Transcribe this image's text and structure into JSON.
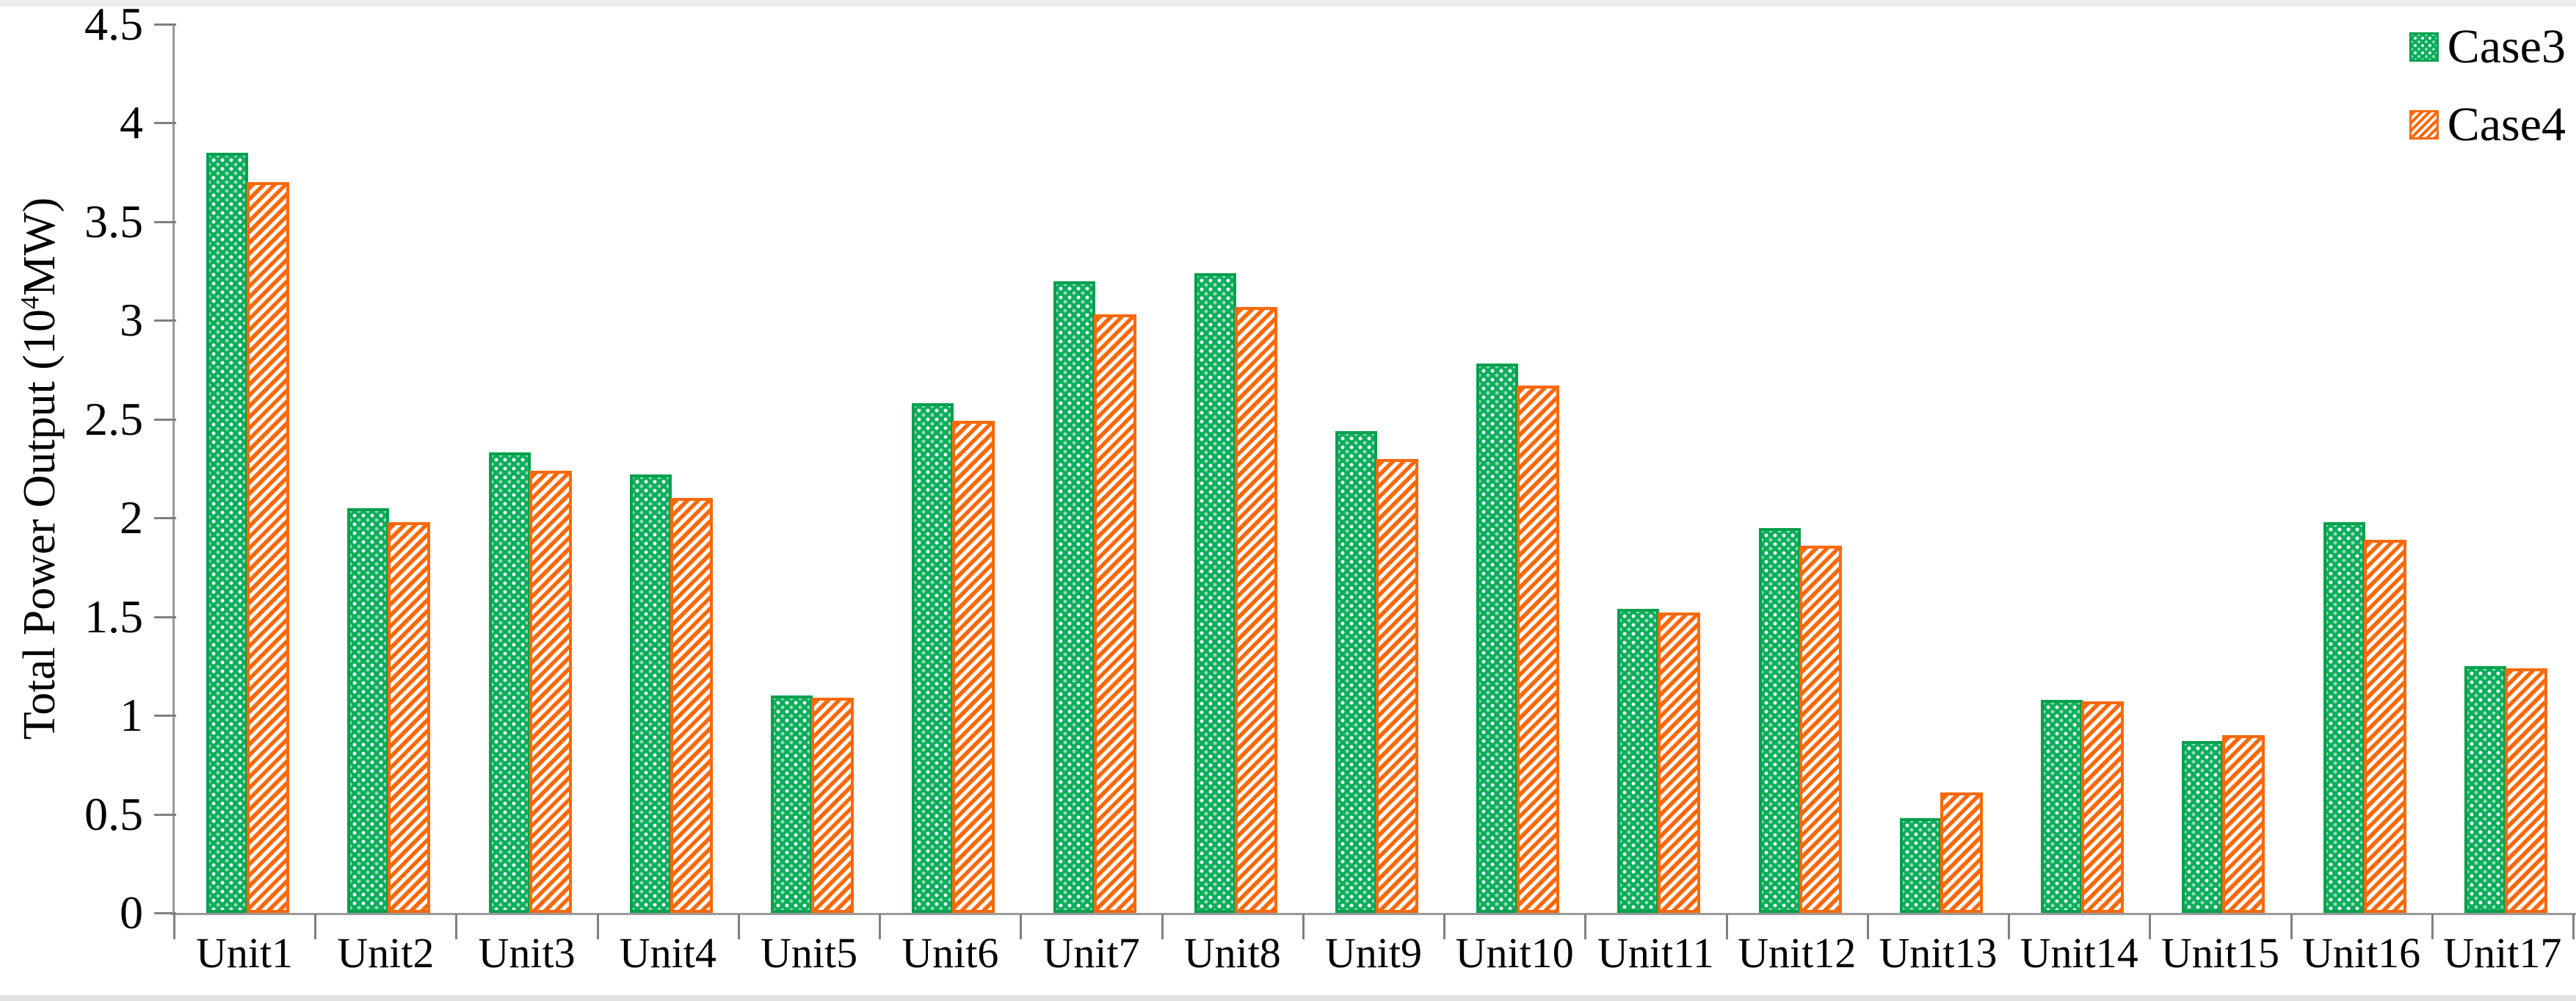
{
  "page": {
    "background": "#ffffff",
    "top_strip_color": "#ececec",
    "bottom_strip_color": "#e2e2e2"
  },
  "chart_data": {
    "type": "bar",
    "title": "",
    "categories": [
      "Unit1",
      "Unit2",
      "Unit3",
      "Unit4",
      "Unit5",
      "Unit6",
      "Unit7",
      "Unit8",
      "Unit9",
      "Unit10",
      "Unit11",
      "Unit12",
      "Unit13",
      "Unit14",
      "Unit15",
      "Unit16",
      "Unit17"
    ],
    "series": [
      {
        "name": "Case3",
        "pattern": "dotted",
        "color": "#0cad5b",
        "border_color": "#05a04e",
        "values": [
          3.85,
          2.05,
          2.33,
          2.22,
          1.1,
          2.58,
          3.2,
          3.24,
          2.44,
          2.78,
          1.54,
          1.95,
          0.48,
          1.08,
          0.87,
          1.98,
          1.25
        ]
      },
      {
        "name": "Case4",
        "pattern": "diagonal-hatch",
        "color": "#f8690b",
        "border_color": "#f8690b",
        "stripe_background": "#ffffff",
        "values": [
          3.7,
          1.98,
          2.24,
          2.1,
          1.09,
          2.49,
          3.03,
          3.07,
          2.3,
          2.67,
          1.52,
          1.86,
          0.61,
          1.07,
          0.9,
          1.89,
          1.24
        ]
      }
    ],
    "xlabel": "",
    "ylabel": "Total Power Output (10⁴MW)",
    "ylabel_parts": {
      "prefix": "Total Power Output (10",
      "superscript": "4",
      "suffix": "MW)"
    },
    "ylim": [
      0,
      4.5
    ],
    "ytick_step": 0.5,
    "ytick_labels": [
      "0",
      "0.5",
      "1",
      "1.5",
      "2",
      "2.5",
      "3",
      "3.5",
      "4",
      "4.5"
    ],
    "grid": "off",
    "legend_position": "top-right",
    "axis_color": "#9a9a9a",
    "tick_color": "#808080",
    "text_color": "#000000"
  }
}
